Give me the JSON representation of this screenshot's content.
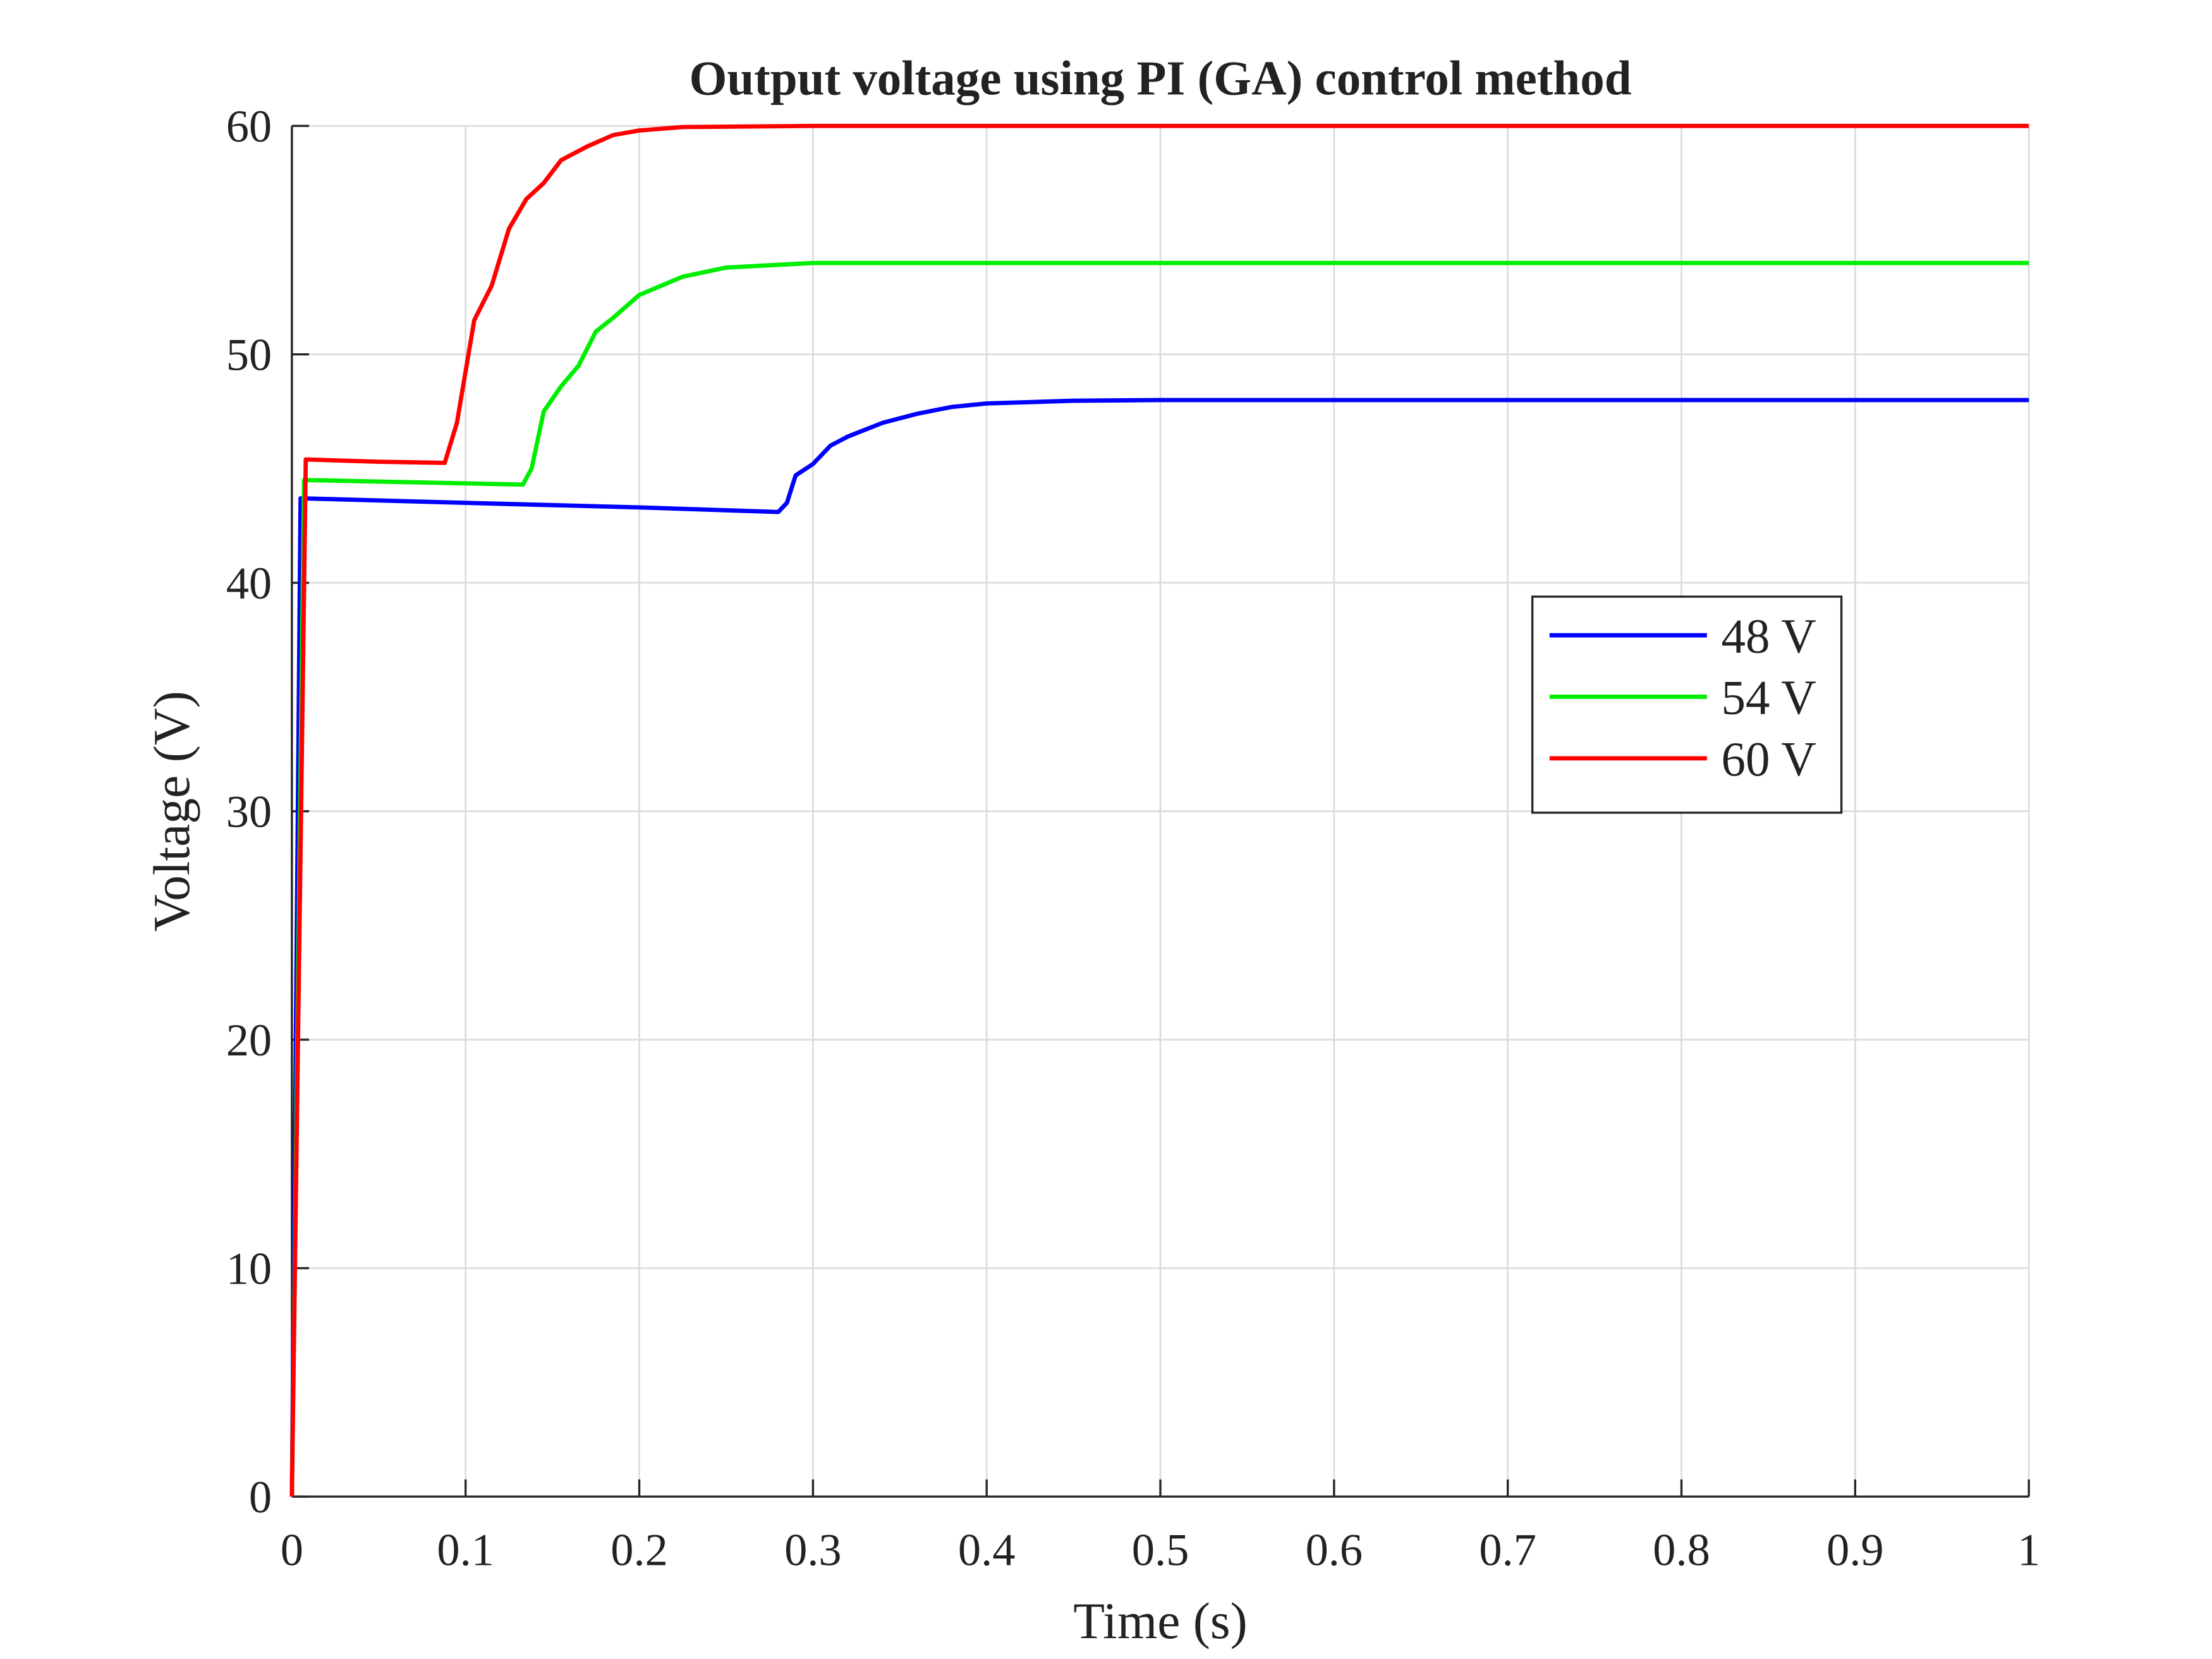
{
  "chart_data": {
    "type": "line",
    "title": "Output voltage using PI (GA) control method",
    "xlabel": "Time (s)",
    "ylabel": "Voltage (V)",
    "xlim": [
      0,
      1
    ],
    "ylim": [
      0,
      60
    ],
    "xticks": [
      0,
      0.1,
      0.2,
      0.3,
      0.4,
      0.5,
      0.6,
      0.7,
      0.8,
      0.9,
      1
    ],
    "yticks": [
      0,
      10,
      20,
      30,
      40,
      50,
      60
    ],
    "grid": true,
    "legend": "east",
    "series": [
      {
        "name": "48 V",
        "color": "#0000ff",
        "x": [
          0,
          0.005,
          0.1,
          0.2,
          0.28,
          0.285,
          0.29,
          0.3,
          0.31,
          0.32,
          0.34,
          0.36,
          0.38,
          0.4,
          0.45,
          0.5,
          1
        ],
        "values": [
          0,
          43.7,
          43.5,
          43.3,
          43.1,
          43.5,
          44.7,
          45.2,
          46.0,
          46.4,
          47.0,
          47.4,
          47.7,
          47.85,
          47.97,
          48,
          48
        ]
      },
      {
        "name": "54 V",
        "color": "#00ee00",
        "x": [
          0,
          0.007,
          0.07,
          0.133,
          0.138,
          0.145,
          0.155,
          0.165,
          0.175,
          0.185,
          0.2,
          0.225,
          0.25,
          0.3,
          1
        ],
        "values": [
          0,
          44.5,
          44.4,
          44.3,
          45,
          47.5,
          48.6,
          49.5,
          51,
          51.6,
          52.6,
          53.4,
          53.8,
          54,
          54
        ]
      },
      {
        "name": "60 V",
        "color": "#ff0000",
        "x": [
          0,
          0.008,
          0.05,
          0.088,
          0.095,
          0.105,
          0.115,
          0.125,
          0.135,
          0.145,
          0.155,
          0.17,
          0.185,
          0.2,
          0.225,
          0.3,
          1
        ],
        "values": [
          0,
          45.4,
          45.3,
          45.25,
          47,
          51.5,
          53,
          55.5,
          56.8,
          57.5,
          58.5,
          59.1,
          59.6,
          59.8,
          59.95,
          60,
          60
        ]
      }
    ]
  }
}
